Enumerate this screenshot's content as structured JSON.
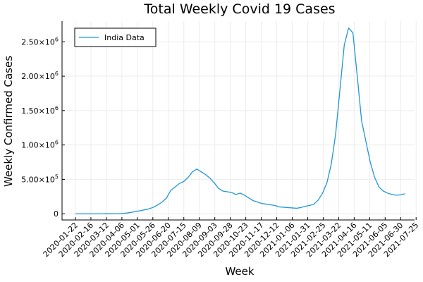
{
  "chart_data": {
    "type": "line",
    "title": "Total Weekly Covid 19 Cases",
    "xlabel": "Week",
    "ylabel": "Weekly Confirmed Cases",
    "x_tick_labels": [
      "2020-01-22",
      "2020-02-16",
      "2020-03-12",
      "2020-04-06",
      "2020-05-01",
      "2020-05-26",
      "2020-06-20",
      "2020-07-15",
      "2020-08-09",
      "2020-09-03",
      "2020-09-28",
      "2020-10-23",
      "2020-11-17",
      "2020-12-12",
      "2021-01-06",
      "2021-01-31",
      "2021-02-25",
      "2021-03-22",
      "2021-04-16",
      "2021-05-11",
      "2021-06-05",
      "2021-06-30",
      "2021-07-25"
    ],
    "y_ticks": [
      {
        "value": 0,
        "mantissa": "0",
        "exp": ""
      },
      {
        "value": 500000,
        "mantissa": "5.00×10",
        "exp": "5"
      },
      {
        "value": 1000000,
        "mantissa": "1.00×10",
        "exp": "6"
      },
      {
        "value": 1500000,
        "mantissa": "1.50×10",
        "exp": "6"
      },
      {
        "value": 2000000,
        "mantissa": "2.00×10",
        "exp": "6"
      },
      {
        "value": 2500000,
        "mantissa": "2.50×10",
        "exp": "6"
      }
    ],
    "ylim": [
      -90000,
      2800000
    ],
    "grid": true,
    "legend_position": "top-left",
    "series": [
      {
        "name": "India Data",
        "color": "#1f96d8",
        "values": [
          0,
          0,
          0,
          0,
          0,
          0,
          0,
          50,
          200,
          900,
          2000,
          5000,
          12000,
          22000,
          35000,
          45000,
          58000,
          72000,
          95000,
          130000,
          170000,
          230000,
          340000,
          390000,
          440000,
          470000,
          530000,
          610000,
          650000,
          610000,
          570000,
          520000,
          450000,
          370000,
          330000,
          320000,
          310000,
          280000,
          300000,
          270000,
          230000,
          190000,
          170000,
          150000,
          140000,
          130000,
          120000,
          100000,
          95000,
          90000,
          85000,
          80000,
          90000,
          110000,
          120000,
          140000,
          200000,
          300000,
          450000,
          720000,
          1150000,
          1800000,
          2450000,
          2700000,
          2630000,
          2000000,
          1350000,
          1050000,
          750000,
          530000,
          390000,
          330000,
          300000,
          280000,
          270000,
          275000,
          290000
        ]
      }
    ]
  }
}
